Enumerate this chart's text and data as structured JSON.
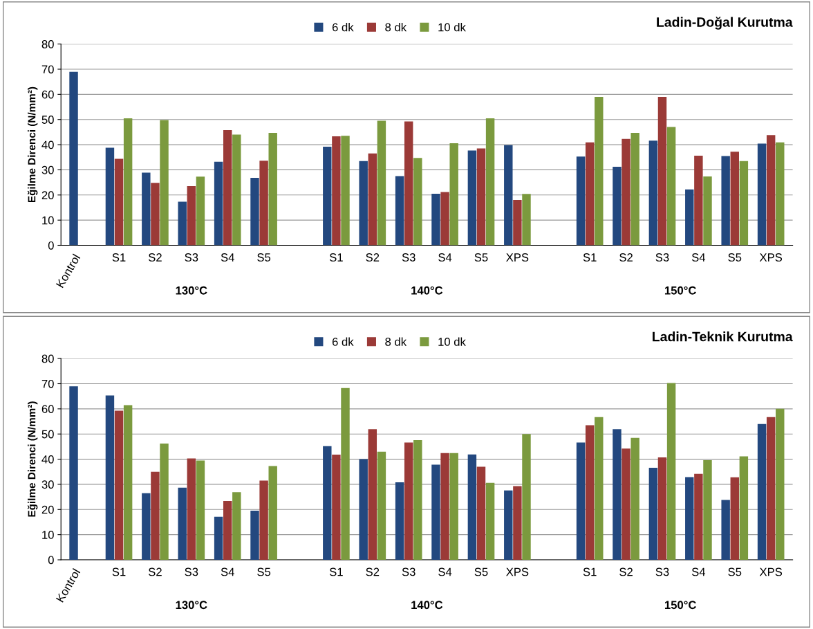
{
  "chart_data": [
    {
      "type": "bar",
      "title": "Ladin-Doğal Kurutma",
      "ylabel": "Eğilme Direnci (N/mm²)",
      "categories": [
        "Kontrol",
        "S1",
        "S2",
        "S3",
        "S4",
        "S5",
        null,
        "S1",
        "S2",
        "S3",
        "S4",
        "S5",
        "XPS",
        null,
        "S1",
        "S2",
        "S3",
        "S4",
        "S5",
        "XPS"
      ],
      "series": [
        {
          "name": "6 dk",
          "color": "#23487f",
          "values": [
            69,
            38.8,
            28.9,
            17.3,
            33.2,
            26.8,
            null,
            39.2,
            33.5,
            27.5,
            20.5,
            37.7,
            39.8,
            null,
            35.3,
            31.2,
            41.6,
            22.2,
            35.5,
            40.4
          ]
        },
        {
          "name": "8 dk",
          "color": "#9b3a37",
          "values": [
            null,
            34.4,
            24.8,
            23.5,
            45.8,
            33.6,
            null,
            43.3,
            36.5,
            49.2,
            21.2,
            38.5,
            18,
            null,
            40.9,
            42.3,
            59,
            35.6,
            37.2,
            43.8
          ]
        },
        {
          "name": "10 dk",
          "color": "#7b9a3e",
          "values": [
            null,
            50.5,
            49.8,
            27.3,
            44,
            44.7,
            null,
            43.5,
            49.5,
            34.7,
            40.6,
            50.5,
            20.4,
            null,
            59,
            44.7,
            47,
            27.4,
            33.5,
            40.9
          ]
        }
      ],
      "annotations": [
        "130°C",
        "140°C",
        "150°C"
      ],
      "ylim": [
        0,
        80
      ],
      "yticks": [
        0,
        10,
        20,
        30,
        40,
        50,
        60,
        70,
        80
      ],
      "grid": "y",
      "legend": "top"
    },
    {
      "type": "bar",
      "title": "Ladin-Teknik Kurutma",
      "ylabel": "Eğilme Direnci (N/mm²)",
      "categories": [
        "Kontrol",
        "S1",
        "S2",
        "S3",
        "S4",
        "S5",
        null,
        "S1",
        "S2",
        "S3",
        "S4",
        "S5",
        "XPS",
        null,
        "S1",
        "S2",
        "S3",
        "S4",
        "S5",
        "XPS"
      ],
      "series": [
        {
          "name": "6 dk",
          "color": "#23487f",
          "values": [
            69,
            65.3,
            26.5,
            28.7,
            17.1,
            19.5,
            null,
            45.2,
            40,
            30.8,
            37.8,
            41.9,
            27.6,
            null,
            46.6,
            51.9,
            36.6,
            32.9,
            23.8,
            54
          ]
        },
        {
          "name": "8 dk",
          "color": "#9b3a37",
          "values": [
            null,
            59.3,
            35,
            40.3,
            23.4,
            31.5,
            null,
            41.8,
            51.9,
            46.6,
            42.4,
            37,
            29.3,
            null,
            53.5,
            44.2,
            40.7,
            34.2,
            32.8,
            56.7
          ]
        },
        {
          "name": "10 dk",
          "color": "#7b9a3e",
          "values": [
            null,
            61.5,
            46.2,
            39.5,
            26.9,
            37.3,
            null,
            68.3,
            43,
            47.6,
            42.4,
            30.6,
            50,
            null,
            56.7,
            48.5,
            70.3,
            39.6,
            41.1,
            60
          ]
        }
      ],
      "annotations": [
        "130°C",
        "140°C",
        "150°C"
      ],
      "ylim": [
        0,
        80
      ],
      "yticks": [
        0,
        10,
        20,
        30,
        40,
        50,
        60,
        70,
        80
      ],
      "grid": "y",
      "legend": "top"
    }
  ]
}
